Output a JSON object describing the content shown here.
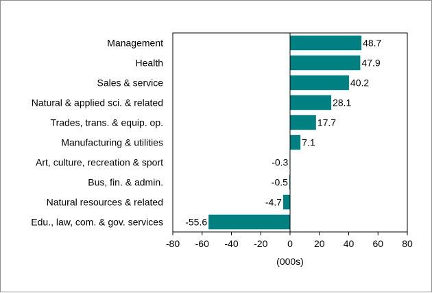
{
  "chart_data": {
    "type": "bar",
    "orientation": "horizontal",
    "categories": [
      "Management",
      "Health",
      "Sales & service",
      "Natural & applied sci. & related",
      "Trades, trans. & equip. op.",
      "Manufacturing & utilities",
      "Art, culture, recreation & sport",
      "Bus, fin. & admin.",
      "Natural resources & related",
      "Edu., law, com. & gov. services"
    ],
    "values": [
      48.7,
      47.9,
      40.2,
      28.1,
      17.7,
      7.1,
      -0.3,
      -0.5,
      -4.7,
      -55.6
    ],
    "value_labels": [
      "48.7",
      "47.9",
      "40.2",
      "28.1",
      "17.7",
      "7.1",
      "-0.3",
      "-0.5",
      "-4.7",
      "-55.6"
    ],
    "xlim": [
      -80,
      80
    ],
    "xticks": [
      -80,
      -60,
      -40,
      -20,
      0,
      20,
      40,
      60,
      80
    ],
    "xtick_labels": [
      "-80",
      "-60",
      "-40",
      "-20",
      "0",
      "20",
      "40",
      "60",
      "80"
    ],
    "xlabel": "(000s)",
    "ylabel": "",
    "title": "",
    "grid": false,
    "colors": {
      "bar": "#008080",
      "axis": "#000000",
      "frame": "#8c8c8c"
    }
  }
}
